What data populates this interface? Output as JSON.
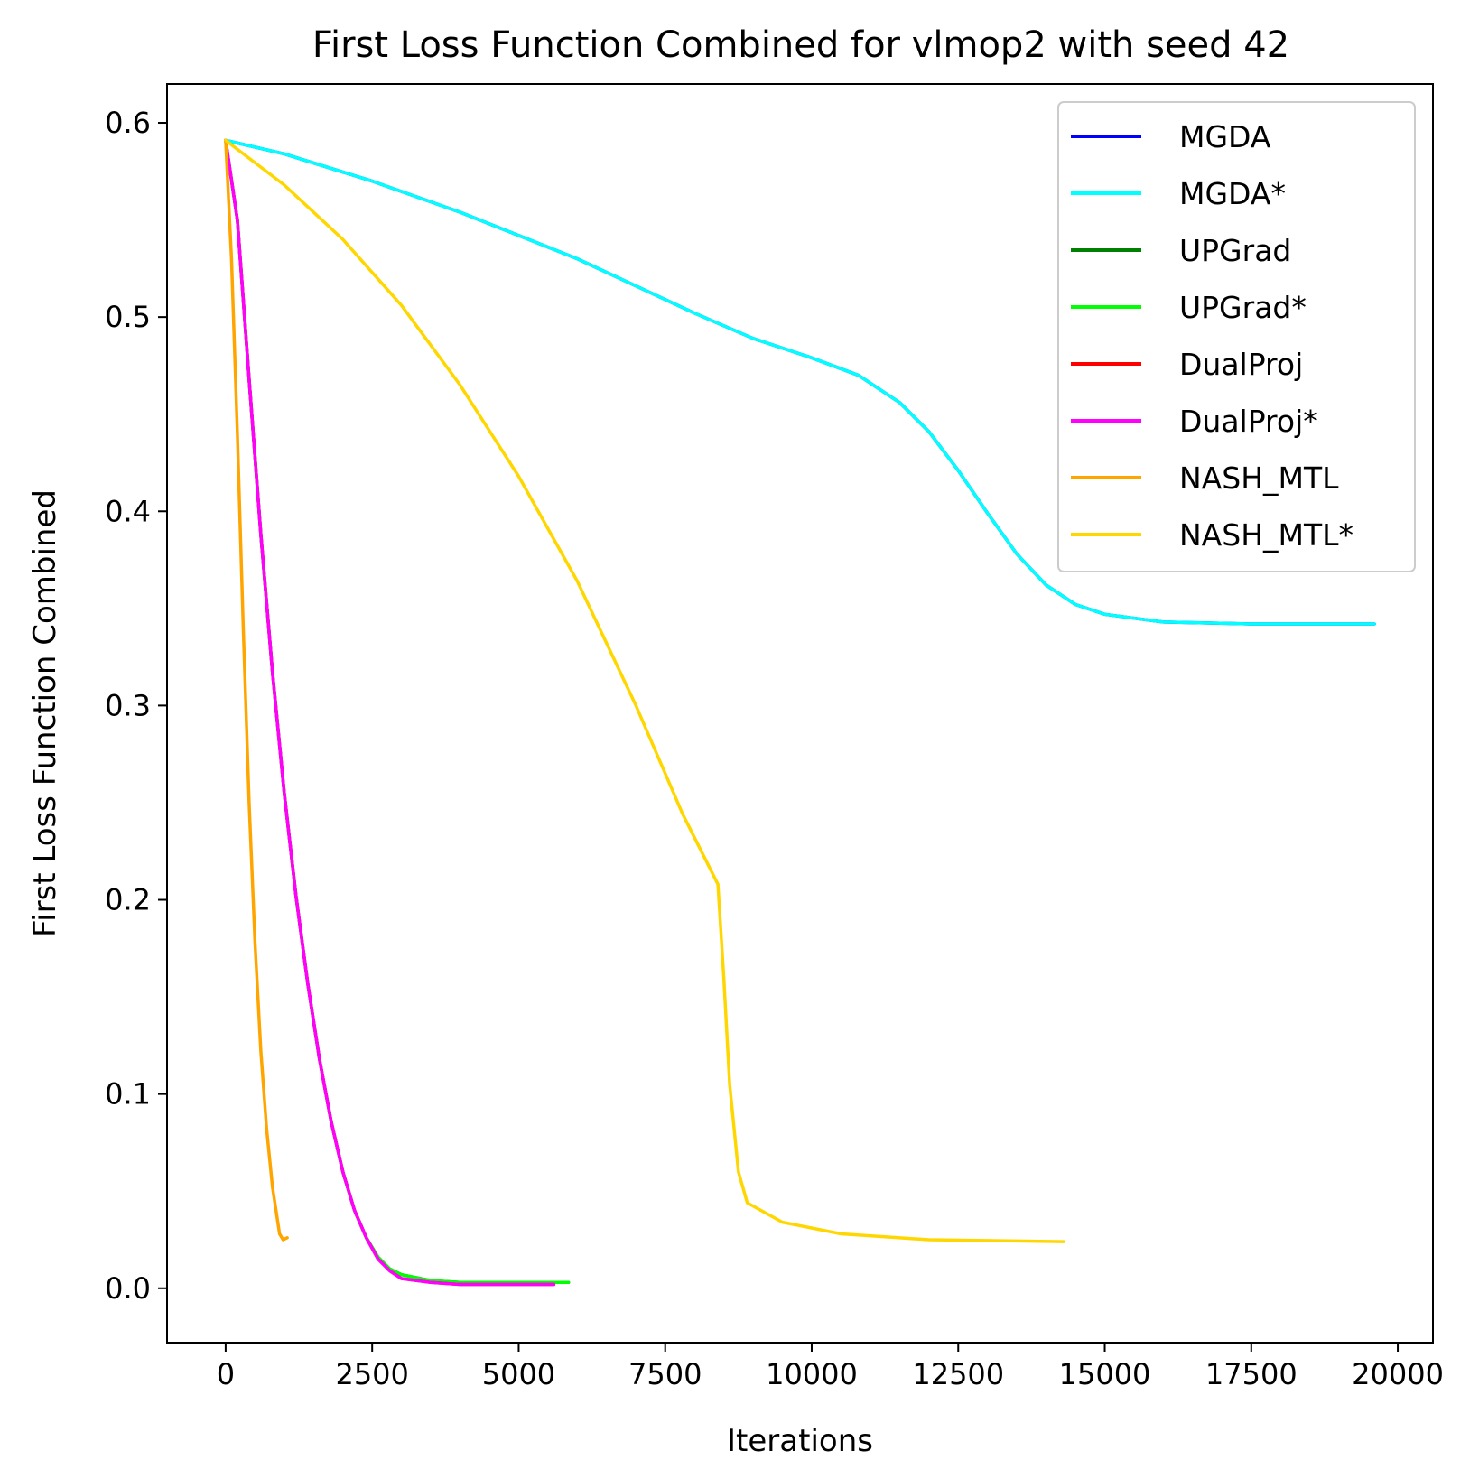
{
  "chart_data": {
    "type": "line",
    "title": "First Loss Function Combined for vlmop2 with seed 42",
    "xlabel": "Iterations",
    "ylabel": "First Loss Function Combined",
    "xlim": [
      -1000,
      20600
    ],
    "ylim": [
      -0.028,
      0.62
    ],
    "xticks": [
      0,
      2500,
      5000,
      7500,
      10000,
      12500,
      15000,
      17500,
      20000
    ],
    "yticks": [
      0.0,
      0.1,
      0.2,
      0.3,
      0.4,
      0.5,
      0.6
    ],
    "xtick_labels": [
      "0",
      "2500",
      "5000",
      "7500",
      "10000",
      "12500",
      "15000",
      "17500",
      "20000"
    ],
    "ytick_labels": [
      "0.0",
      "0.1",
      "0.2",
      "0.3",
      "0.4",
      "0.5",
      "0.6"
    ],
    "grid": false,
    "legend_position": "top-right",
    "series": [
      {
        "name": "MGDA",
        "color": "#0000ff",
        "points": [
          [
            0,
            0.591
          ],
          [
            1000,
            0.584
          ],
          [
            2500,
            0.57
          ],
          [
            4000,
            0.554
          ],
          [
            5000,
            0.542
          ],
          [
            6000,
            0.53
          ],
          [
            7000,
            0.516
          ],
          [
            8000,
            0.502
          ],
          [
            9000,
            0.489
          ],
          [
            10000,
            0.479
          ],
          [
            10800,
            0.47
          ],
          [
            11500,
            0.456
          ],
          [
            12000,
            0.441
          ],
          [
            12500,
            0.421
          ],
          [
            13000,
            0.399
          ],
          [
            13500,
            0.378
          ],
          [
            14000,
            0.362
          ],
          [
            14500,
            0.352
          ],
          [
            15000,
            0.347
          ],
          [
            16000,
            0.343
          ],
          [
            17500,
            0.342
          ],
          [
            19600,
            0.342
          ]
        ]
      },
      {
        "name": "MGDA*",
        "color": "#00ffff",
        "points": [
          [
            0,
            0.591
          ],
          [
            1000,
            0.584
          ],
          [
            2500,
            0.57
          ],
          [
            4000,
            0.554
          ],
          [
            5000,
            0.542
          ],
          [
            6000,
            0.53
          ],
          [
            7000,
            0.516
          ],
          [
            8000,
            0.502
          ],
          [
            9000,
            0.489
          ],
          [
            10000,
            0.479
          ],
          [
            10800,
            0.47
          ],
          [
            11500,
            0.456
          ],
          [
            12000,
            0.441
          ],
          [
            12500,
            0.421
          ],
          [
            13000,
            0.399
          ],
          [
            13500,
            0.378
          ],
          [
            14000,
            0.362
          ],
          [
            14500,
            0.352
          ],
          [
            15000,
            0.347
          ],
          [
            16000,
            0.343
          ],
          [
            17500,
            0.342
          ],
          [
            19600,
            0.342
          ]
        ]
      },
      {
        "name": "UPGrad",
        "color": "#008000",
        "points": [
          [
            0,
            0.591
          ],
          [
            200,
            0.55
          ],
          [
            400,
            0.468
          ],
          [
            600,
            0.388
          ],
          [
            800,
            0.317
          ],
          [
            1000,
            0.255
          ],
          [
            1200,
            0.202
          ],
          [
            1400,
            0.157
          ],
          [
            1600,
            0.118
          ],
          [
            1800,
            0.086
          ],
          [
            2000,
            0.06
          ],
          [
            2200,
            0.04
          ],
          [
            2400,
            0.026
          ],
          [
            2600,
            0.016
          ],
          [
            2800,
            0.01
          ],
          [
            3000,
            0.007
          ],
          [
            3500,
            0.004
          ],
          [
            4000,
            0.003
          ],
          [
            5000,
            0.003
          ],
          [
            5850,
            0.003
          ]
        ]
      },
      {
        "name": "UPGrad*",
        "color": "#00ff00",
        "points": [
          [
            0,
            0.591
          ],
          [
            200,
            0.55
          ],
          [
            400,
            0.468
          ],
          [
            600,
            0.388
          ],
          [
            800,
            0.317
          ],
          [
            1000,
            0.255
          ],
          [
            1200,
            0.202
          ],
          [
            1400,
            0.157
          ],
          [
            1600,
            0.118
          ],
          [
            1800,
            0.086
          ],
          [
            2000,
            0.06
          ],
          [
            2200,
            0.04
          ],
          [
            2400,
            0.026
          ],
          [
            2600,
            0.016
          ],
          [
            2800,
            0.01
          ],
          [
            3000,
            0.007
          ],
          [
            3500,
            0.004
          ],
          [
            4000,
            0.003
          ],
          [
            5000,
            0.003
          ],
          [
            5850,
            0.003
          ]
        ]
      },
      {
        "name": "DualProj",
        "color": "#ff0000",
        "points": [
          [
            0,
            0.591
          ],
          [
            200,
            0.55
          ],
          [
            400,
            0.468
          ],
          [
            600,
            0.388
          ],
          [
            800,
            0.317
          ],
          [
            1000,
            0.255
          ],
          [
            1200,
            0.202
          ],
          [
            1400,
            0.157
          ],
          [
            1600,
            0.118
          ],
          [
            1800,
            0.086
          ],
          [
            2000,
            0.06
          ],
          [
            2200,
            0.04
          ],
          [
            2400,
            0.026
          ],
          [
            2600,
            0.015
          ],
          [
            2800,
            0.009
          ],
          [
            3000,
            0.005
          ],
          [
            3500,
            0.003
          ],
          [
            4000,
            0.002
          ],
          [
            5000,
            0.002
          ],
          [
            5600,
            0.002
          ]
        ]
      },
      {
        "name": "DualProj*",
        "color": "#ff00ff",
        "points": [
          [
            0,
            0.591
          ],
          [
            200,
            0.55
          ],
          [
            400,
            0.468
          ],
          [
            600,
            0.388
          ],
          [
            800,
            0.317
          ],
          [
            1000,
            0.255
          ],
          [
            1200,
            0.202
          ],
          [
            1400,
            0.157
          ],
          [
            1600,
            0.118
          ],
          [
            1800,
            0.086
          ],
          [
            2000,
            0.06
          ],
          [
            2200,
            0.04
          ],
          [
            2400,
            0.026
          ],
          [
            2600,
            0.015
          ],
          [
            2800,
            0.009
          ],
          [
            3000,
            0.005
          ],
          [
            3500,
            0.003
          ],
          [
            4000,
            0.002
          ],
          [
            5000,
            0.002
          ],
          [
            5600,
            0.002
          ]
        ]
      },
      {
        "name": "NASH_MTL",
        "color": "#ffa500",
        "points": [
          [
            0,
            0.591
          ],
          [
            100,
            0.53
          ],
          [
            200,
            0.44
          ],
          [
            300,
            0.34
          ],
          [
            400,
            0.25
          ],
          [
            500,
            0.178
          ],
          [
            600,
            0.122
          ],
          [
            700,
            0.082
          ],
          [
            800,
            0.052
          ],
          [
            880,
            0.036
          ],
          [
            920,
            0.028
          ],
          [
            980,
            0.025
          ],
          [
            1050,
            0.026
          ]
        ]
      },
      {
        "name": "NASH_MTL*",
        "color": "#ffd700",
        "points": [
          [
            0,
            0.591
          ],
          [
            1000,
            0.568
          ],
          [
            2000,
            0.54
          ],
          [
            3000,
            0.506
          ],
          [
            4000,
            0.465
          ],
          [
            5000,
            0.418
          ],
          [
            6000,
            0.364
          ],
          [
            7000,
            0.3
          ],
          [
            7800,
            0.244
          ],
          [
            8400,
            0.208
          ],
          [
            8500,
            0.16
          ],
          [
            8600,
            0.105
          ],
          [
            8750,
            0.06
          ],
          [
            8900,
            0.044
          ],
          [
            9500,
            0.034
          ],
          [
            10500,
            0.028
          ],
          [
            12000,
            0.025
          ],
          [
            14300,
            0.024
          ]
        ]
      }
    ]
  }
}
